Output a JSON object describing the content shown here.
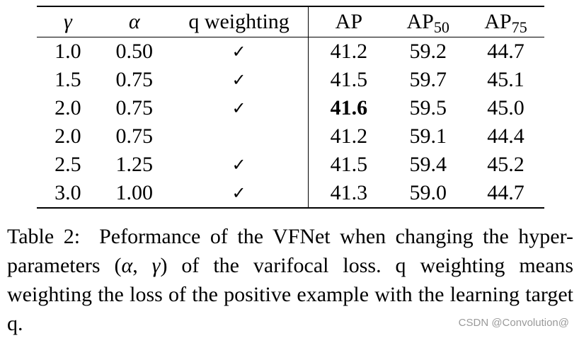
{
  "table": {
    "headers": {
      "gamma": "γ",
      "alpha": "α",
      "q_weighting": "q weighting",
      "ap": "AP",
      "ap50_base": "AP",
      "ap50_sub": "50",
      "ap75_base": "AP",
      "ap75_sub": "75"
    },
    "rows": [
      {
        "gamma": "1.0",
        "alpha": "0.50",
        "q": "✓",
        "ap": "41.2",
        "ap50": "59.2",
        "ap75": "44.7"
      },
      {
        "gamma": "1.5",
        "alpha": "0.75",
        "q": "✓",
        "ap": "41.5",
        "ap50": "59.7",
        "ap75": "45.1"
      },
      {
        "gamma": "2.0",
        "alpha": "0.75",
        "q": "✓",
        "ap": "41.6",
        "ap50": "59.5",
        "ap75": "45.0"
      },
      {
        "gamma": "2.0",
        "alpha": "0.75",
        "q": "",
        "ap": "41.2",
        "ap50": "59.1",
        "ap75": "44.4"
      },
      {
        "gamma": "2.5",
        "alpha": "1.25",
        "q": "✓",
        "ap": "41.5",
        "ap50": "59.4",
        "ap75": "45.2"
      },
      {
        "gamma": "3.0",
        "alpha": "1.00",
        "q": "✓",
        "ap": "41.3",
        "ap50": "59.0",
        "ap75": "44.7"
      }
    ]
  },
  "caption": {
    "label": "Table 2:",
    "part1": "Peformance of the VFNet when changing the hyper-parameters (",
    "alpha": "α",
    "sep": ", ",
    "gamma": "γ",
    "part2": ") of the varifocal loss. q weighting means weighting the loss of the positive example with the learning target q."
  },
  "watermark": "CSDN @Convolution@"
}
